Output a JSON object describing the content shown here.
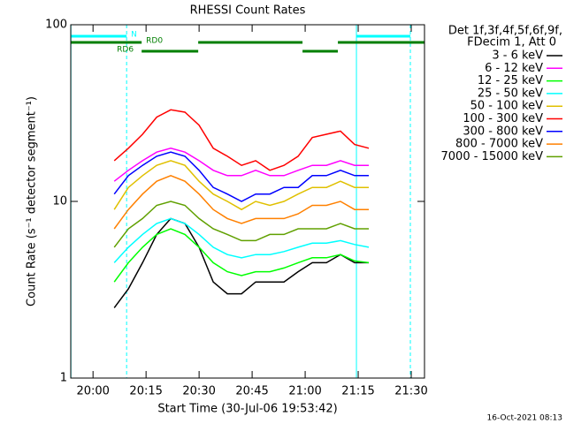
{
  "chart_data": {
    "type": "line",
    "title": "RHESSI Count Rates",
    "x_label": "Start Time (30-Jul-06 19:53:42)",
    "y_label": "Count Rate (s⁻¹ detector segment⁻¹)",
    "log_y": true,
    "xlim": [
      1193.7,
      1293.75
    ],
    "ylim": [
      1,
      100
    ],
    "xticks": [
      {
        "value": 1200,
        "label": "20:00"
      },
      {
        "value": 1215,
        "label": "20:15"
      },
      {
        "value": 1230,
        "label": "20:30"
      },
      {
        "value": 1245,
        "label": "20:45"
      },
      {
        "value": 1260,
        "label": "21:00"
      },
      {
        "value": 1275,
        "label": "21:15"
      },
      {
        "value": 1290,
        "label": "21:30"
      }
    ],
    "yticks": [
      1,
      10,
      100
    ],
    "legend_title": [
      "Det 1f,3f,4f,5f,6f,9f,",
      "FDecim 1, Att 0"
    ],
    "footer": "16-Oct-2021 08:13",
    "x": [
      1206,
      1210,
      1214,
      1218,
      1222,
      1226,
      1230,
      1234,
      1238,
      1242,
      1246,
      1250,
      1254,
      1258,
      1262,
      1266,
      1270,
      1274,
      1278
    ],
    "series": [
      {
        "name": "3 - 6 keV",
        "color": "#000000",
        "values": [
          2.5,
          3.2,
          4.5,
          6.5,
          8,
          7.5,
          5.5,
          3.5,
          3,
          3,
          3.5,
          3.5,
          3.5,
          4,
          4.5,
          4.5,
          5,
          4.5,
          4.5
        ]
      },
      {
        "name": "6 - 12 keV",
        "color": "#ff00ff",
        "values": [
          13,
          15,
          17,
          19,
          20,
          19,
          17,
          15,
          14,
          14,
          15,
          14,
          14,
          15,
          16,
          16,
          17,
          16,
          16
        ]
      },
      {
        "name": "12 - 25 keV",
        "color": "#00ff00",
        "values": [
          3.5,
          4.5,
          5.5,
          6.5,
          7,
          6.5,
          5.5,
          4.5,
          4,
          3.8,
          4,
          4,
          4.2,
          4.5,
          4.8,
          4.8,
          5,
          4.6,
          4.5
        ]
      },
      {
        "name": "25 - 50 keV",
        "color": "#00ffff",
        "values": [
          4.5,
          5.5,
          6.5,
          7.5,
          8,
          7.5,
          6.5,
          5.5,
          5,
          4.8,
          5,
          5,
          5.2,
          5.5,
          5.8,
          5.8,
          6,
          5.7,
          5.5
        ]
      },
      {
        "name": "50 - 100 keV",
        "color": "#e0c000",
        "values": [
          9,
          12,
          14,
          16,
          17,
          16,
          13,
          11,
          10,
          9,
          10,
          9.5,
          10,
          11,
          12,
          12,
          13,
          12,
          12
        ]
      },
      {
        "name": "100 - 300 keV",
        "color": "#ff0000",
        "values": [
          17,
          20,
          24,
          30,
          33,
          32,
          27,
          20,
          18,
          16,
          17,
          15,
          16,
          18,
          23,
          24,
          25,
          21,
          20
        ]
      },
      {
        "name": "300 - 800 keV",
        "color": "#0000ff",
        "values": [
          11,
          14,
          16,
          18,
          19,
          18,
          15,
          12,
          11,
          10,
          11,
          11,
          12,
          12,
          14,
          14,
          15,
          14,
          14
        ]
      },
      {
        "name": "800 - 7000 keV",
        "color": "#ff8000",
        "values": [
          7,
          9,
          11,
          13,
          14,
          13,
          11,
          9,
          8,
          7.5,
          8,
          8,
          8,
          8.5,
          9.5,
          9.5,
          10,
          9,
          9
        ]
      },
      {
        "name": "7000 - 15000 keV",
        "color": "#60a000",
        "values": [
          5.5,
          7,
          8,
          9.5,
          10,
          9.5,
          8,
          7,
          6.5,
          6,
          6,
          6.5,
          6.5,
          7,
          7,
          7,
          7.5,
          7,
          7
        ]
      }
    ],
    "states": [
      {
        "label": "N",
        "color": "#00ffff",
        "segments": [
          [
            1193.75,
            1209.5
          ],
          [
            1274.5,
            1289.75
          ]
        ]
      },
      {
        "label": "RD0",
        "color": "#007f00",
        "segments": [
          [
            1193.75,
            1213.75
          ],
          [
            1229.75,
            1259.25
          ],
          [
            1269.25,
            1293.75
          ]
        ]
      },
      {
        "label": "RD6",
        "color": "#007f00",
        "segments": [
          [
            1213.75,
            1229.75
          ],
          [
            1259.25,
            1269.25
          ]
        ]
      }
    ],
    "vlines": [
      {
        "x": 1193.75,
        "style": "solid"
      },
      {
        "x": 1209.5,
        "style": "dashed"
      },
      {
        "x": 1274.5,
        "style": "solid"
      },
      {
        "x": 1289.75,
        "style": "dashed"
      }
    ],
    "vline_color": "#00ffff"
  }
}
